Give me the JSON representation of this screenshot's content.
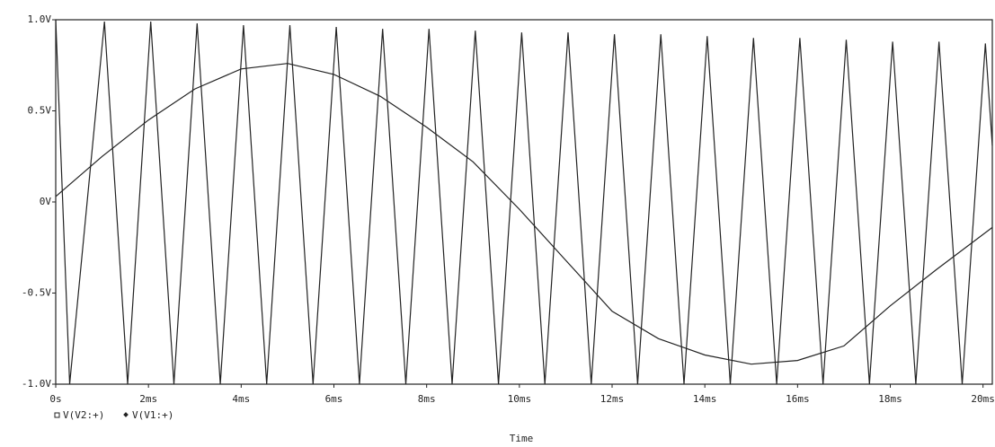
{
  "chart_data": {
    "type": "line",
    "x_label": "Time",
    "xlim": [
      0,
      20.2
    ],
    "ylim": [
      -1,
      1
    ],
    "xticks": [
      {
        "value": 0,
        "label": "0s"
      },
      {
        "value": 2,
        "label": "2ms"
      },
      {
        "value": 4,
        "label": "4ms"
      },
      {
        "value": 6,
        "label": "6ms"
      },
      {
        "value": 8,
        "label": "8ms"
      },
      {
        "value": 10,
        "label": "10ms"
      },
      {
        "value": 12,
        "label": "12ms"
      },
      {
        "value": 14,
        "label": "14ms"
      },
      {
        "value": 16,
        "label": "16ms"
      },
      {
        "value": 18,
        "label": "18ms"
      },
      {
        "value": 20,
        "label": "20ms"
      }
    ],
    "yticks": [
      {
        "value": 1,
        "label": "1.0V"
      },
      {
        "value": 0.5,
        "label": "0.5V"
      },
      {
        "value": 0,
        "label": "0V"
      },
      {
        "value": -0.5,
        "label": "-0.5V"
      },
      {
        "value": -1,
        "label": "-1.0V"
      }
    ],
    "series": [
      {
        "name": "V(V2:+)",
        "color": "#222222",
        "x": [
          0,
          1,
          2,
          3,
          4,
          5,
          6,
          7,
          8,
          9,
          10,
          11,
          12,
          13,
          14,
          15,
          16,
          17,
          18,
          19,
          20.2
        ],
        "values": [
          0.03,
          0.25,
          0.45,
          0.62,
          0.73,
          0.76,
          0.7,
          0.58,
          0.41,
          0.22,
          -0.04,
          -0.32,
          -0.6,
          -0.75,
          -0.84,
          -0.89,
          -0.87,
          -0.79,
          -0.57,
          -0.37,
          -0.14
        ]
      },
      {
        "name": "V(V1:+)",
        "color": "#222222",
        "x": [
          0,
          0.3,
          1.05,
          1.55,
          2.05,
          2.55,
          3.05,
          3.55,
          4.05,
          4.55,
          5.05,
          5.55,
          6.05,
          6.55,
          7.05,
          7.55,
          8.05,
          8.55,
          9.05,
          9.55,
          10.05,
          10.55,
          11.05,
          11.55,
          12.05,
          12.55,
          13.05,
          13.55,
          14.05,
          14.55,
          15.05,
          15.55,
          16.05,
          16.55,
          17.05,
          17.55,
          18.05,
          18.55,
          19.05,
          19.55,
          20.05,
          20.2
        ],
        "values": [
          1,
          -1,
          0.99,
          -1,
          0.99,
          -1,
          0.98,
          -1,
          0.97,
          -1,
          0.97,
          -1,
          0.96,
          -1,
          0.95,
          -1,
          0.95,
          -1,
          0.94,
          -1,
          0.93,
          -1,
          0.93,
          -1,
          0.92,
          -1,
          0.92,
          -1,
          0.91,
          -1,
          0.9,
          -1,
          0.9,
          -1,
          0.89,
          -1,
          0.88,
          -1,
          0.88,
          -1,
          0.87,
          0.31
        ]
      }
    ]
  }
}
